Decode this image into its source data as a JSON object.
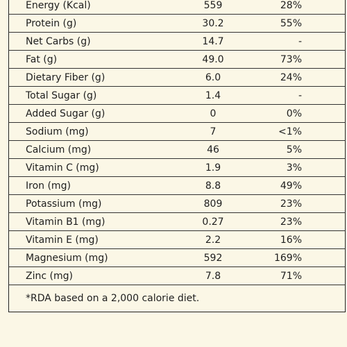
{
  "table": {
    "rows": [
      [
        "Energy (Kcal)",
        "559",
        "28%"
      ],
      [
        "Protein (g)",
        "30.2",
        "55%"
      ],
      [
        "Net Carbs (g)",
        "14.7",
        "-"
      ],
      [
        "Fat (g)",
        "49.0",
        "73%"
      ],
      [
        "Dietary Fiber (g)",
        "6.0",
        "24%"
      ],
      [
        "Total Sugar (g)",
        "1.4",
        "-"
      ],
      [
        "Added Sugar (g)",
        "0",
        "0%"
      ],
      [
        "Sodium (mg)",
        "7",
        "<1%"
      ],
      [
        "Calcium (mg)",
        "46",
        "5%"
      ],
      [
        "Vitamin C (mg)",
        "1.9",
        "3%"
      ],
      [
        "Iron (mg)",
        "8.8",
        "49%"
      ],
      [
        "Potassium (mg)",
        "809",
        "23%"
      ],
      [
        "Vitamin B1 (mg)",
        "0.27",
        "23%"
      ],
      [
        "Vitamin E (mg)",
        "2.2",
        "16%"
      ],
      [
        "Magnesium (mg)",
        "592",
        "169%"
      ],
      [
        "Zinc (mg)",
        "7.8",
        "71%"
      ]
    ],
    "footnote": "*RDA based on a 2,000 calorie diet."
  }
}
